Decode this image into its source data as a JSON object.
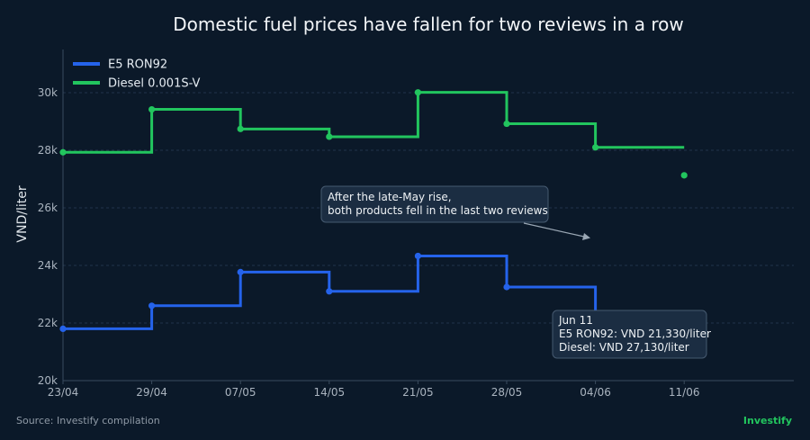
{
  "chart_data": {
    "type": "line",
    "step": "post",
    "title": "Domestic fuel prices have fallen for two reviews in a row",
    "xlabel": "",
    "ylabel": "VND/liter",
    "x": [
      "23/04",
      "29/04",
      "07/05",
      "14/05",
      "21/05",
      "28/05",
      "04/06",
      "11/06"
    ],
    "xticks": [
      "23/04",
      "29/04",
      "07/05",
      "14/05",
      "21/05",
      "28/05",
      "04/06",
      "11/06"
    ],
    "ylim": [
      20000,
      31500
    ],
    "yticks": [
      20000,
      22000,
      24000,
      26000,
      28000,
      30000
    ],
    "ytick_labels": [
      "20k",
      "22k",
      "24k",
      "26k",
      "28k",
      "30k"
    ],
    "grid": true,
    "legend": "top-left",
    "series": [
      {
        "name": "E5 RON92",
        "color": "#2563eb",
        "values": [
          21800,
          22600,
          23770,
          23100,
          24330,
          23250,
          22000,
          21330
        ]
      },
      {
        "name": "Diesel 0.001S-V",
        "color": "#22c55e",
        "values": [
          27930,
          29420,
          28740,
          28470,
          30010,
          28920,
          28100,
          27130
        ]
      }
    ],
    "annotations": [
      {
        "lines": [
          "After the late-May rise,",
          "both products fell in the last two reviews"
        ]
      },
      {
        "lines": [
          "Jun 11",
          "E5 RON92: VND 21,330/liter",
          "Diesel: VND 27,130/liter"
        ]
      }
    ]
  },
  "footer": {
    "source": "Source: Investify compilation",
    "brand": "Investify"
  }
}
